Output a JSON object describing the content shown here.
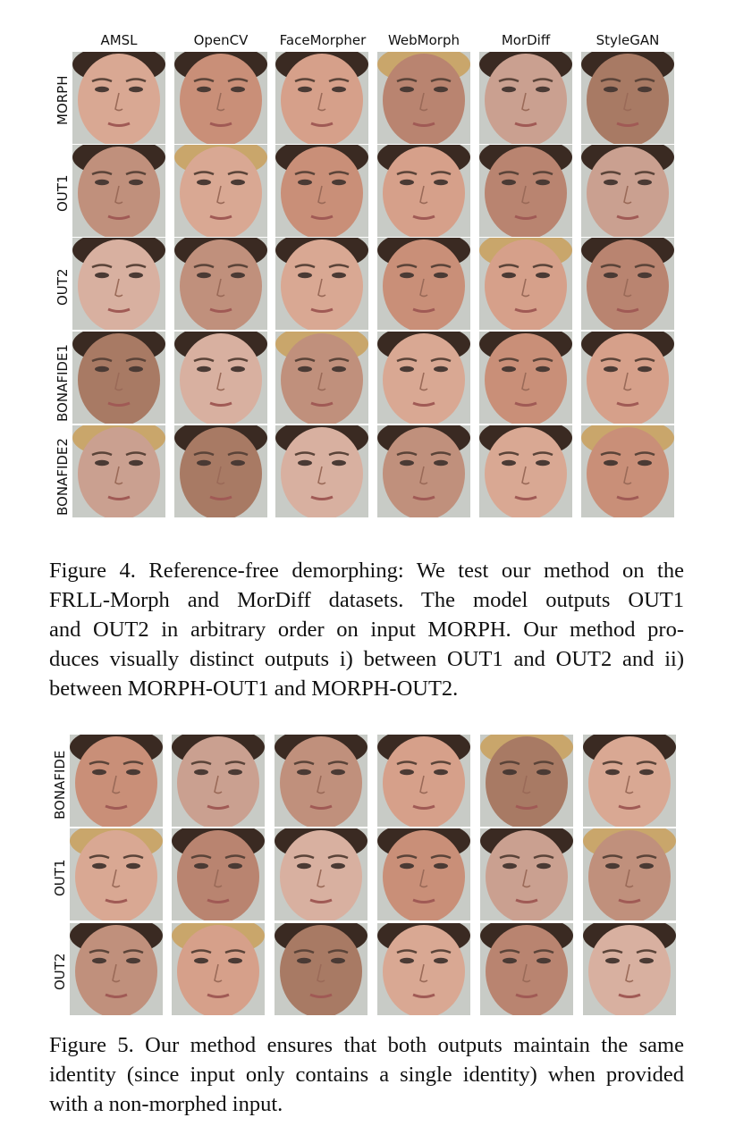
{
  "figure4": {
    "columns": [
      "AMSL",
      "OpenCV",
      "FaceMorpher",
      "WebMorph",
      "MorDiff",
      "StyleGAN"
    ],
    "rows": [
      "MORPH",
      "OUT1",
      "OUT2",
      "BONAFIDE1",
      "BONAFIDE2"
    ],
    "caption_lines": [
      "Figure 4. Reference-free demorphing: We test our method on the",
      "FRLL-Morph and MorDiff datasets.  The model outputs OUT1",
      "and OUT2 in arbitrary order on input MORPH. Our method pro-",
      "duces visually distinct outputs i) between OUT1 and OUT2 and ii)",
      "between MORPH-OUT1 and MORPH-OUT2."
    ]
  },
  "figure5": {
    "rows": [
      "BONAFIDE",
      "OUT1",
      "OUT2"
    ],
    "caption_lines": [
      "Figure 5. Our method ensures that both outputs maintain the same",
      "identity (since input only contains a single identity) when provided",
      "with a non-morphed input."
    ]
  },
  "colors": {
    "skin_tones": [
      "#d9a893",
      "#c98f78",
      "#d6a08a",
      "#b98470",
      "#caa090",
      "#a87a64",
      "#d8b0a0",
      "#c0907c"
    ],
    "hair_dark": "#3a2a22",
    "background_gray": "#c8cbc6"
  },
  "icons": [
    "face-image"
  ]
}
